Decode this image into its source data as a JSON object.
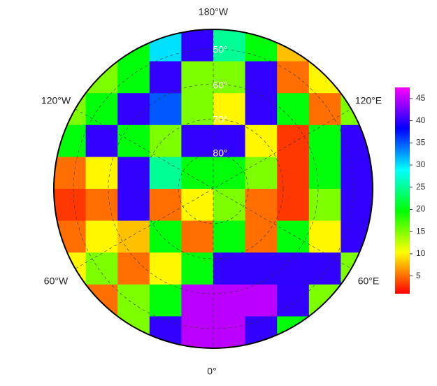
{
  "map": {
    "longitude_labels": [
      "180°W",
      "120°W",
      "120°E",
      "60°W",
      "60°E",
      "0°"
    ],
    "latitude_labels": [
      "50°",
      "60°",
      "70°",
      "80°"
    ],
    "grid_values": [
      [
        20,
        20,
        20,
        30,
        40,
        25,
        20,
        8,
        20,
        20
      ],
      [
        20,
        15,
        20,
        40,
        15,
        15,
        40,
        5,
        10,
        20
      ],
      [
        15,
        20,
        40,
        35,
        15,
        10,
        40,
        20,
        5,
        15
      ],
      [
        20,
        40,
        20,
        15,
        40,
        40,
        10,
        3,
        20,
        40
      ],
      [
        5,
        10,
        40,
        25,
        20,
        20,
        15,
        3,
        20,
        40
      ],
      [
        3,
        5,
        40,
        5,
        10,
        15,
        5,
        3,
        15,
        40
      ],
      [
        5,
        10,
        8,
        20,
        5,
        20,
        5,
        20,
        10,
        40
      ],
      [
        10,
        15,
        5,
        10,
        20,
        40,
        40,
        40,
        40,
        15
      ],
      [
        20,
        5,
        15,
        20,
        45,
        45,
        45,
        40,
        15,
        20
      ],
      [
        20,
        20,
        15,
        40,
        45,
        45,
        40,
        20,
        20,
        20
      ]
    ]
  },
  "colorbar": {
    "lim": [
      1,
      47.5
    ],
    "ticks": [
      5,
      10,
      15,
      20,
      25,
      30,
      35,
      40,
      45
    ]
  }
}
